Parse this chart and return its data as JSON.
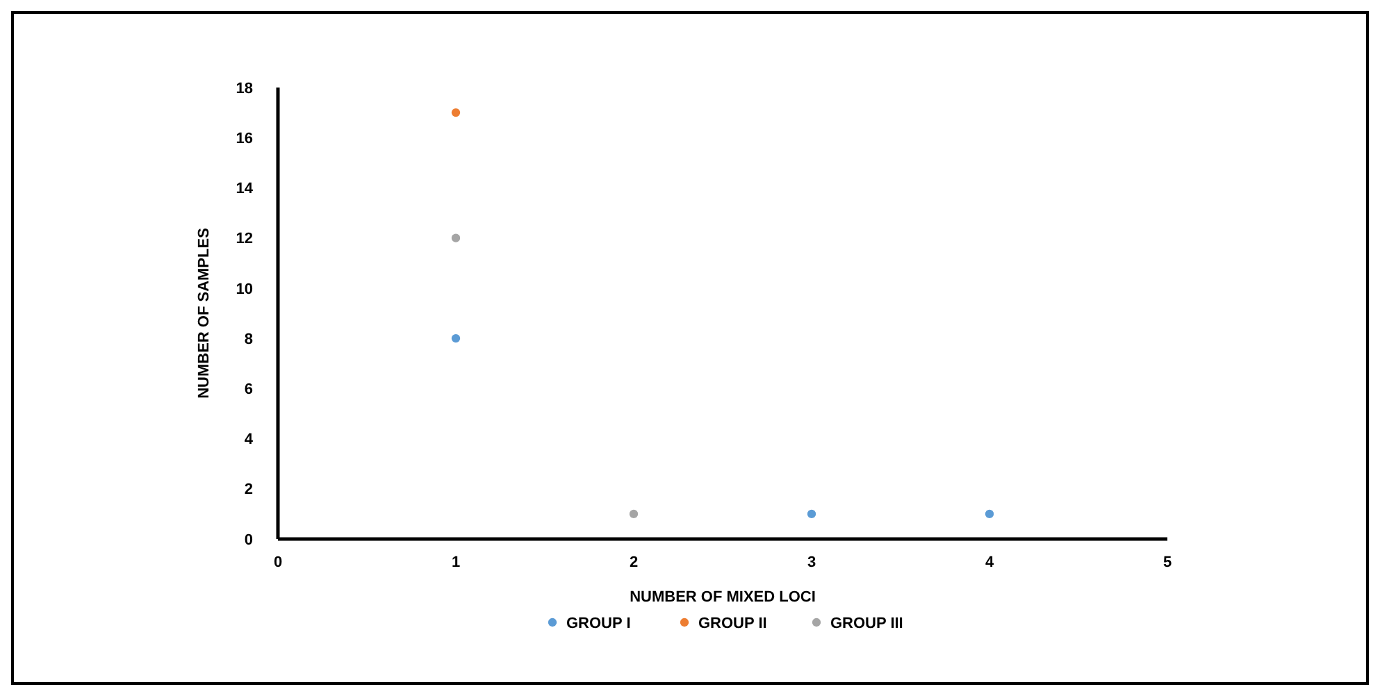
{
  "chart_data": {
    "type": "scatter",
    "xlabel": "NUMBER OF MIXED LOCI",
    "ylabel": "NUMBER OF SAMPLES",
    "xlim": [
      0,
      5
    ],
    "xticks": [
      0,
      1,
      2,
      3,
      4,
      5
    ],
    "ylim": [
      0,
      18
    ],
    "yticks": [
      0,
      2,
      4,
      6,
      8,
      10,
      12,
      14,
      16,
      18
    ],
    "grid": false,
    "legend": "bottom",
    "marker": "circle",
    "series": [
      {
        "name": "GROUP I",
        "color": "#5b9bd5",
        "x": [
          1,
          3,
          4
        ],
        "values": [
          8,
          1,
          1
        ]
      },
      {
        "name": "GROUP II",
        "color": "#ed7d31",
        "x": [
          1
        ],
        "values": [
          17
        ]
      },
      {
        "name": "GROUP III",
        "color": "#a5a5a5",
        "x": [
          1,
          2
        ],
        "values": [
          12,
          1
        ]
      }
    ]
  }
}
